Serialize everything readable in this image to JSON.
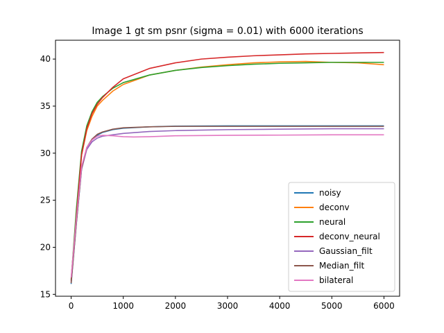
{
  "chart_data": {
    "type": "line",
    "title": "Image 1 gt sm psnr (sigma = 0.01) with 6000 iterations",
    "xlabel": "",
    "ylabel": "",
    "xlim": [
      -300,
      6300
    ],
    "ylim": [
      14.8,
      42.0
    ],
    "xticks": [
      0,
      1000,
      2000,
      3000,
      4000,
      5000,
      6000
    ],
    "yticks": [
      15,
      20,
      25,
      30,
      35,
      40
    ],
    "grid": false,
    "legend_position": "lower-right",
    "series": [
      {
        "name": "noisy",
        "color": "#1f77b4",
        "points": [
          [
            0,
            16.1
          ],
          [
            100,
            22.5
          ],
          [
            200,
            28.3
          ],
          [
            300,
            30.5
          ],
          [
            400,
            31.4
          ],
          [
            500,
            31.9
          ],
          [
            600,
            32.2
          ],
          [
            800,
            32.5
          ],
          [
            1000,
            32.65
          ],
          [
            1500,
            32.8
          ],
          [
            2000,
            32.87
          ],
          [
            3000,
            32.9
          ],
          [
            4000,
            32.9
          ],
          [
            5000,
            32.9
          ],
          [
            6000,
            32.9
          ]
        ]
      },
      {
        "name": "deconv",
        "color": "#ff7f0e",
        "points": [
          [
            0,
            16.6
          ],
          [
            100,
            23.5
          ],
          [
            200,
            29.8
          ],
          [
            300,
            32.4
          ],
          [
            400,
            33.9
          ],
          [
            500,
            35.0
          ],
          [
            600,
            35.6
          ],
          [
            800,
            36.6
          ],
          [
            1000,
            37.3
          ],
          [
            1500,
            38.3
          ],
          [
            2000,
            38.8
          ],
          [
            2500,
            39.15
          ],
          [
            3000,
            39.4
          ],
          [
            3500,
            39.6
          ],
          [
            4000,
            39.7
          ],
          [
            4500,
            39.75
          ],
          [
            5000,
            39.65
          ],
          [
            5500,
            39.6
          ],
          [
            6000,
            39.4
          ]
        ]
      },
      {
        "name": "neural",
        "color": "#2ca02c",
        "points": [
          [
            0,
            16.5
          ],
          [
            100,
            24.0
          ],
          [
            200,
            30.2
          ],
          [
            300,
            32.9
          ],
          [
            400,
            34.4
          ],
          [
            500,
            35.4
          ],
          [
            600,
            36.0
          ],
          [
            800,
            36.9
          ],
          [
            1000,
            37.5
          ],
          [
            1500,
            38.3
          ],
          [
            2000,
            38.8
          ],
          [
            2500,
            39.1
          ],
          [
            3000,
            39.3
          ],
          [
            3500,
            39.45
          ],
          [
            4000,
            39.55
          ],
          [
            4500,
            39.6
          ],
          [
            5000,
            39.65
          ],
          [
            5500,
            39.65
          ],
          [
            6000,
            39.65
          ]
        ]
      },
      {
        "name": "deconv_neural",
        "color": "#d62728",
        "points": [
          [
            0,
            16.4
          ],
          [
            100,
            23.3
          ],
          [
            200,
            29.8
          ],
          [
            300,
            32.6
          ],
          [
            400,
            34.2
          ],
          [
            500,
            35.2
          ],
          [
            600,
            35.9
          ],
          [
            800,
            37.0
          ],
          [
            1000,
            37.9
          ],
          [
            1500,
            39.0
          ],
          [
            2000,
            39.6
          ],
          [
            2500,
            40.0
          ],
          [
            3000,
            40.2
          ],
          [
            3500,
            40.35
          ],
          [
            4000,
            40.45
          ],
          [
            4500,
            40.55
          ],
          [
            5000,
            40.6
          ],
          [
            5500,
            40.65
          ],
          [
            6000,
            40.7
          ]
        ]
      },
      {
        "name": "Gaussian_filt",
        "color": "#9467bd",
        "points": [
          [
            0,
            16.3
          ],
          [
            100,
            22.6
          ],
          [
            200,
            28.3
          ],
          [
            300,
            30.4
          ],
          [
            400,
            31.2
          ],
          [
            500,
            31.6
          ],
          [
            600,
            31.8
          ],
          [
            800,
            31.95
          ],
          [
            1000,
            32.1
          ],
          [
            1500,
            32.3
          ],
          [
            2000,
            32.4
          ],
          [
            3000,
            32.5
          ],
          [
            4000,
            32.55
          ],
          [
            5000,
            32.6
          ],
          [
            6000,
            32.6
          ]
        ]
      },
      {
        "name": "Median_filt",
        "color": "#8c564b",
        "points": [
          [
            0,
            16.2
          ],
          [
            100,
            22.6
          ],
          [
            200,
            28.4
          ],
          [
            300,
            30.6
          ],
          [
            400,
            31.5
          ],
          [
            500,
            32.0
          ],
          [
            600,
            32.25
          ],
          [
            800,
            32.55
          ],
          [
            1000,
            32.7
          ],
          [
            1500,
            32.8
          ],
          [
            2000,
            32.85
          ],
          [
            3000,
            32.85
          ],
          [
            4000,
            32.85
          ],
          [
            5000,
            32.85
          ],
          [
            6000,
            32.85
          ]
        ]
      },
      {
        "name": "bilateral",
        "color": "#e377c2",
        "points": [
          [
            0,
            16.8
          ],
          [
            100,
            23.0
          ],
          [
            200,
            28.6
          ],
          [
            300,
            30.6
          ],
          [
            400,
            31.4
          ],
          [
            500,
            31.8
          ],
          [
            600,
            31.9
          ],
          [
            800,
            31.85
          ],
          [
            1000,
            31.75
          ],
          [
            1200,
            31.72
          ],
          [
            1500,
            31.75
          ],
          [
            2000,
            31.85
          ],
          [
            3000,
            31.9
          ],
          [
            4000,
            31.92
          ],
          [
            5000,
            31.95
          ],
          [
            6000,
            31.95
          ]
        ]
      }
    ]
  }
}
